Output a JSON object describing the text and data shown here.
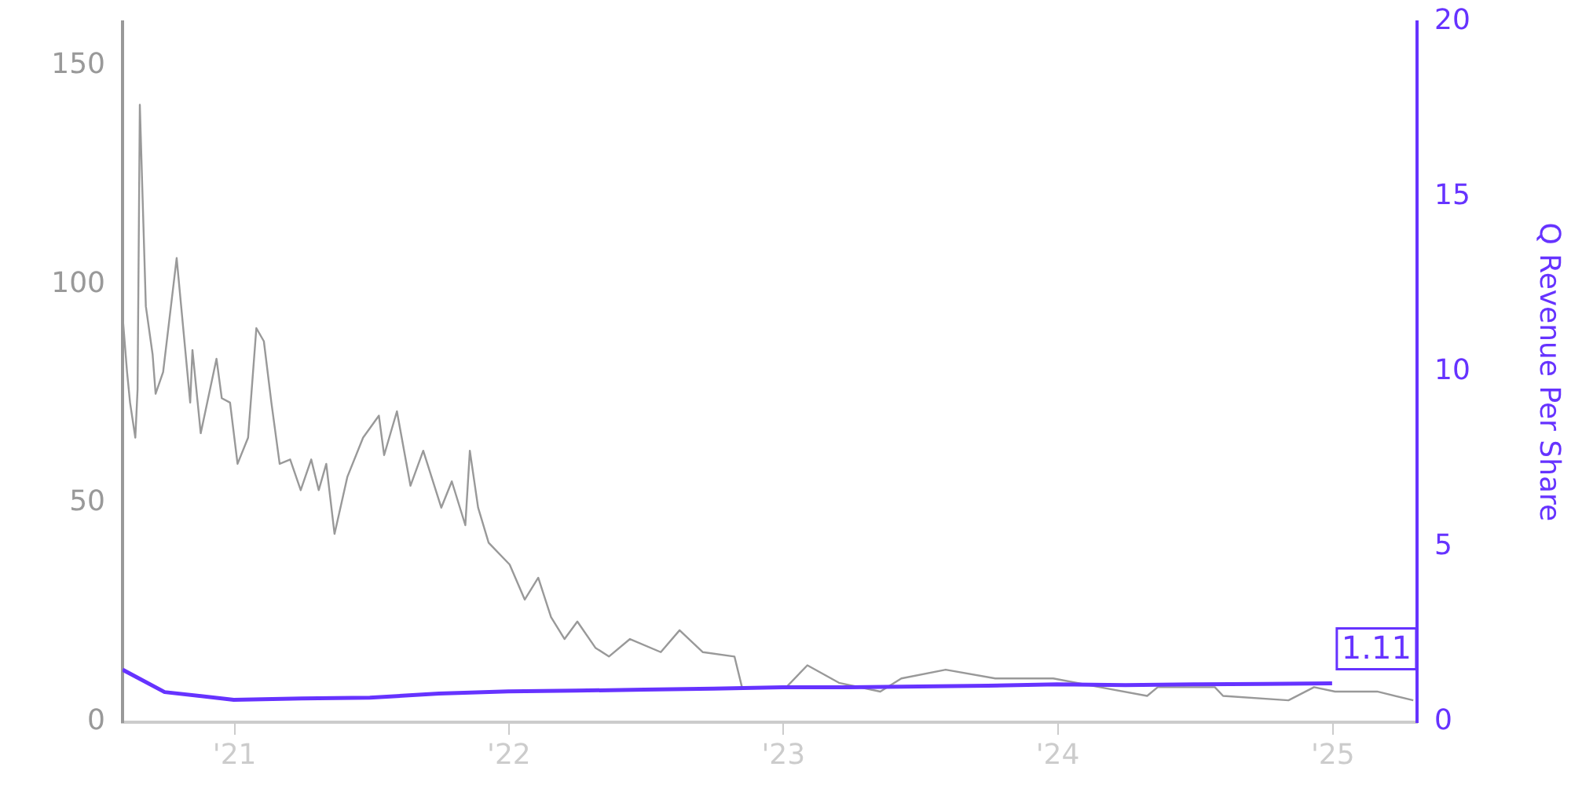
{
  "chart_data": {
    "type": "line",
    "y2label": "Q Revenue Per Share",
    "xlim": [
      "2020-08-05",
      "2025-04-23"
    ],
    "xticks": [
      {
        "value": "2021-01-01",
        "label": "'21"
      },
      {
        "value": "2022-01-01",
        "label": "'22"
      },
      {
        "value": "2023-01-01",
        "label": "'23"
      },
      {
        "value": "2024-01-01",
        "label": "'24"
      },
      {
        "value": "2025-01-01",
        "label": "'25"
      }
    ],
    "ylim": [
      0,
      160
    ],
    "yticks": [
      0,
      50,
      100,
      150
    ],
    "y2lim": [
      0,
      20
    ],
    "y2ticks": [
      0,
      5,
      10,
      15,
      20
    ],
    "grid": false,
    "legend": false,
    "marker": "none",
    "line_style": "solid",
    "series": [
      {
        "color": "#999999",
        "x": [
          "2020-08-05",
          "2020-08-11",
          "2020-08-15",
          "2020-08-22",
          "2020-08-25",
          "2020-08-28",
          "2020-09-05",
          "2020-09-14",
          "2020-09-18",
          "2020-09-28",
          "2020-10-16",
          "2020-11-03",
          "2020-11-06",
          "2020-11-17",
          "2020-12-08",
          "2020-12-15",
          "2020-12-26",
          "2021-01-05",
          "2021-01-19",
          "2021-01-30",
          "2021-02-09",
          "2021-02-19",
          "2021-03-02",
          "2021-03-16",
          "2021-03-30",
          "2021-04-13",
          "2021-04-23",
          "2021-05-03",
          "2021-05-14",
          "2021-05-31",
          "2021-06-21",
          "2021-07-12",
          "2021-07-19",
          "2021-08-05",
          "2021-08-23",
          "2021-09-09",
          "2021-10-03",
          "2021-10-17",
          "2021-11-04",
          "2021-11-10",
          "2021-11-21",
          "2021-12-05",
          "2022-01-02",
          "2022-01-22",
          "2022-02-09",
          "2022-02-26",
          "2022-03-16",
          "2022-04-02",
          "2022-04-26",
          "2022-05-14",
          "2022-06-11",
          "2022-07-22",
          "2022-08-16",
          "2022-09-16",
          "2022-10-28",
          "2022-11-07",
          "2023-01-05",
          "2023-02-02",
          "2023-03-16",
          "2023-05-10",
          "2023-06-07",
          "2023-08-05",
          "2023-10-10",
          "2023-12-26",
          "2024-02-26",
          "2024-04-29",
          "2024-05-13",
          "2024-07-28",
          "2024-08-08",
          "2024-11-03",
          "2024-12-07",
          "2025-01-04",
          "2025-03-01",
          "2025-04-18"
        ],
        "values": [
          93,
          80,
          73,
          65,
          76,
          141,
          95,
          84,
          75,
          80,
          106,
          73,
          85,
          66,
          83,
          74,
          73,
          59,
          65,
          90,
          87,
          73,
          59,
          60,
          53,
          60,
          53,
          59,
          43,
          56,
          65,
          70,
          61,
          71,
          54,
          62,
          49,
          55,
          45,
          62,
          49,
          41,
          36,
          28,
          33,
          24,
          19,
          23,
          17,
          15,
          19,
          16,
          21,
          16,
          15,
          8,
          8,
          13,
          9,
          7,
          10,
          12,
          10,
          10,
          8,
          6,
          8,
          8,
          6,
          5,
          8,
          7,
          7,
          5
        ]
      },
      {
        "color": "#6633ff",
        "axis": "y2",
        "x": [
          "2020-08-05",
          "2020-09-30",
          "2020-12-31",
          "2021-03-31",
          "2021-06-30",
          "2021-09-30",
          "2021-12-31",
          "2022-03-31",
          "2022-06-30",
          "2022-09-30",
          "2022-12-31",
          "2023-03-31",
          "2023-06-30",
          "2023-09-30",
          "2023-12-31",
          "2024-03-31",
          "2024-06-30",
          "2024-09-30",
          "2024-12-31"
        ],
        "values": [
          1.5,
          0.86,
          0.64,
          0.68,
          0.7,
          0.82,
          0.88,
          0.9,
          0.93,
          0.96,
          1.0,
          1.0,
          1.02,
          1.04,
          1.08,
          1.06,
          1.08,
          1.09,
          1.11
        ],
        "value_labels": [
          null,
          null,
          null,
          null,
          null,
          null,
          null,
          null,
          null,
          null,
          null,
          null,
          null,
          null,
          null,
          null,
          null,
          null,
          "1.11"
        ]
      }
    ]
  }
}
